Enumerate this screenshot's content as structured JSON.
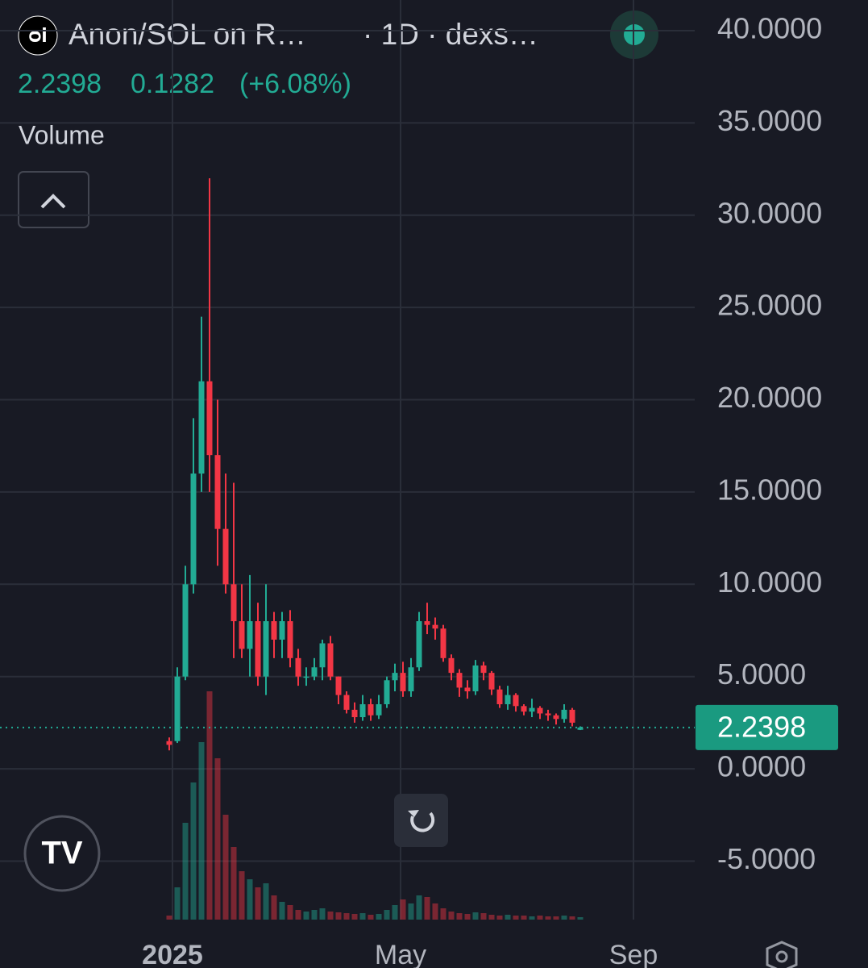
{
  "chart_data": {
    "type": "candlestick",
    "title": "Anon/SOL on R…",
    "subtitle": "· 1D · dexs…",
    "last_price": 2.2398,
    "change": 0.1282,
    "change_label": "(+6.08%)",
    "volume_label": "Volume",
    "up_color": "#22ab94",
    "down_color": "#f23645",
    "categories": [
      null,
      null,
      null,
      null,
      null,
      null,
      null,
      null,
      null,
      null,
      null,
      null,
      null,
      null,
      null,
      null,
      null,
      null,
      null,
      null,
      null,
      null,
      null,
      null,
      null,
      null,
      null,
      null,
      null,
      null,
      null,
      null,
      null,
      null,
      null,
      null,
      null,
      null,
      null,
      null,
      null,
      null,
      null,
      null,
      null,
      null,
      null,
      null,
      null,
      null,
      null,
      null
    ],
    "open": [
      1.5,
      1.5,
      5,
      10,
      16,
      21,
      17,
      13,
      10,
      8,
      6.5,
      8,
      5,
      8,
      7,
      8,
      6,
      5,
      5,
      5.5,
      6.8,
      5,
      4,
      3.2,
      2.8,
      3.5,
      2.9,
      3.5,
      4.8,
      5.2,
      4.2,
      5.5,
      8,
      7.8,
      7.6,
      6,
      5.2,
      4.4,
      4.2,
      5.6,
      5.2,
      4.3,
      3.5,
      4,
      3.4,
      3.1,
      3.3,
      3.0,
      2.9,
      2.7,
      3.2,
      2.1116
    ],
    "high": [
      1.7,
      5.5,
      11,
      19,
      24.5,
      32,
      20,
      16,
      15.5,
      10,
      10.5,
      9,
      10,
      8.5,
      8.5,
      8.6,
      6.5,
      5.5,
      6,
      7,
      7.2,
      5,
      4.2,
      3.6,
      4,
      3.8,
      4,
      5,
      5.7,
      5.8,
      6,
      8.5,
      9,
      8.2,
      7.8,
      6.2,
      5.4,
      4.8,
      5.9,
      5.8,
      5.3,
      4.5,
      4.5,
      4.1,
      3.5,
      3.8,
      3.4,
      3.2,
      3.0,
      3.5,
      3.3,
      2.3
    ],
    "low": [
      1.0,
      1.4,
      4.8,
      9.5,
      15,
      15,
      11,
      9.5,
      6,
      6,
      5,
      4.5,
      4,
      6,
      6,
      5.5,
      4.5,
      4.5,
      4.8,
      4.8,
      4.8,
      3.5,
      3,
      2.5,
      2.6,
      2.6,
      2.7,
      3.3,
      4.2,
      3.9,
      3.9,
      5.3,
      7.3,
      7,
      5.8,
      4.8,
      3.9,
      3.8,
      4,
      4.8,
      4,
      3.3,
      3.2,
      3.1,
      2.9,
      2.8,
      2.7,
      2.6,
      2.4,
      2.5,
      2.3,
      2.1
    ],
    "close": [
      1.3,
      5,
      10,
      16,
      21,
      17,
      13,
      10,
      8,
      6.5,
      8,
      5,
      8,
      7,
      8,
      6,
      5,
      5,
      5.5,
      6.8,
      5,
      4,
      3.2,
      2.8,
      3.5,
      2.9,
      3.5,
      4.8,
      5.2,
      4.2,
      5.5,
      8,
      7.8,
      7.6,
      6,
      5.2,
      4.4,
      4.2,
      5.6,
      5.2,
      4.3,
      3.5,
      4,
      3.4,
      3.1,
      3.3,
      3.0,
      2.9,
      2.7,
      3.2,
      2.5,
      2.2398
    ],
    "volume": [
      5,
      40,
      120,
      170,
      220,
      283,
      200,
      130,
      90,
      60,
      50,
      40,
      45,
      30,
      22,
      18,
      12,
      10,
      12,
      14,
      10,
      9,
      8,
      7,
      8,
      6,
      7,
      12,
      18,
      25,
      20,
      30,
      28,
      20,
      14,
      10,
      8,
      7,
      9,
      8,
      6,
      5,
      6,
      5,
      5,
      4,
      5,
      4,
      4,
      5,
      4,
      3
    ],
    "ylim": [
      -8.17,
      41.66
    ],
    "yticks": [
      {
        "value": 40,
        "label": "40.0000"
      },
      {
        "value": 35,
        "label": "35.0000"
      },
      {
        "value": 30,
        "label": "30.0000"
      },
      {
        "value": 25,
        "label": "25.0000"
      },
      {
        "value": 20,
        "label": "20.0000"
      },
      {
        "value": 15,
        "label": "15.0000"
      },
      {
        "value": 10,
        "label": "10.0000"
      },
      {
        "value": 5,
        "label": "5.0000"
      },
      {
        "value": 0,
        "label": "0.0000"
      },
      {
        "value": -5,
        "label": "-5.0000"
      }
    ],
    "xticks": [
      {
        "value": 0.4,
        "label": "2025"
      },
      {
        "value": 28.7,
        "label": "May"
      },
      {
        "value": 57.6,
        "label": "Sep"
      }
    ],
    "grid": true
  }
}
